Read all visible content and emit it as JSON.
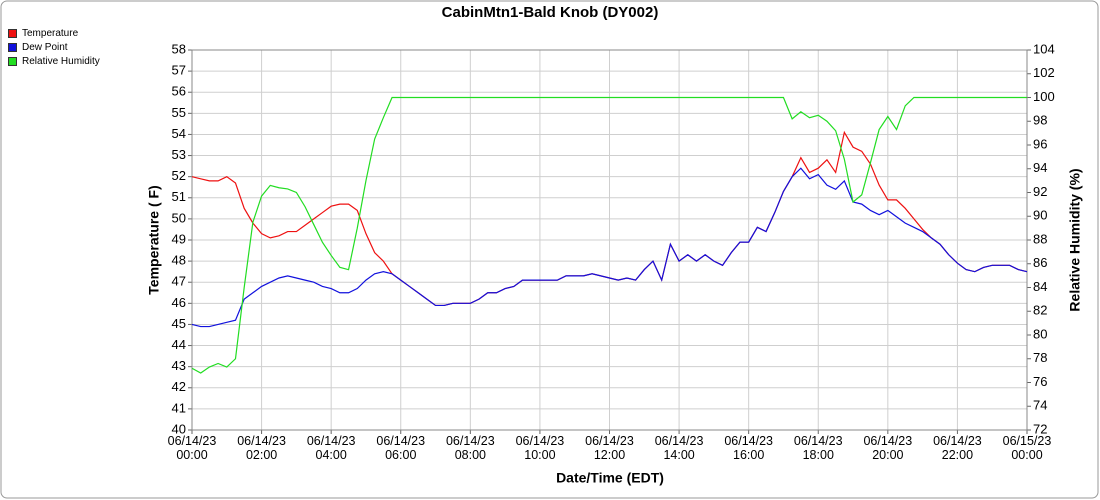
{
  "chart_data": {
    "type": "line",
    "title": "CabinMtn1-Bald Knob (DY002)",
    "xlabel": "Date/Time (EDT)",
    "ylabel": "Temperature ( F)",
    "y2label": "Relative Humidity (%)",
    "grid": true,
    "legend": "top-left",
    "xlim": [
      0,
      24
    ],
    "xticks": [
      {
        "value": 0,
        "label": "06/14/23 00:00"
      },
      {
        "value": 2,
        "label": "06/14/23 02:00"
      },
      {
        "value": 4,
        "label": "06/14/23 04:00"
      },
      {
        "value": 6,
        "label": "06/14/23 06:00"
      },
      {
        "value": 8,
        "label": "06/14/23 08:00"
      },
      {
        "value": 10,
        "label": "06/14/23 10:00"
      },
      {
        "value": 12,
        "label": "06/14/23 12:00"
      },
      {
        "value": 14,
        "label": "06/14/23 14:00"
      },
      {
        "value": 16,
        "label": "06/14/23 16:00"
      },
      {
        "value": 18,
        "label": "06/14/23 18:00"
      },
      {
        "value": 20,
        "label": "06/14/23 20:00"
      },
      {
        "value": 22,
        "label": "06/14/23 22:00"
      },
      {
        "value": 24,
        "label": "06/15/23 00:00"
      }
    ],
    "ylim": [
      40,
      58
    ],
    "yticks": [
      40,
      41,
      42,
      43,
      44,
      45,
      46,
      47,
      48,
      49,
      50,
      51,
      52,
      53,
      54,
      55,
      56,
      57,
      58
    ],
    "y2lim": [
      72,
      104
    ],
    "y2ticks": [
      72,
      74,
      76,
      78,
      80,
      82,
      84,
      86,
      88,
      90,
      92,
      94,
      96,
      98,
      100,
      102,
      104
    ],
    "x": [
      0,
      0.25,
      0.5,
      0.75,
      1,
      1.25,
      1.5,
      1.75,
      2,
      2.25,
      2.5,
      2.75,
      3,
      3.25,
      3.5,
      3.75,
      4,
      4.25,
      4.5,
      4.75,
      5,
      5.25,
      5.5,
      5.75,
      6,
      6.25,
      6.5,
      6.75,
      7,
      7.25,
      7.5,
      7.75,
      8,
      8.25,
      8.5,
      8.75,
      9,
      9.25,
      9.5,
      9.75,
      10,
      10.25,
      10.5,
      10.75,
      11,
      11.25,
      11.5,
      11.75,
      12,
      12.25,
      12.5,
      12.75,
      13,
      13.25,
      13.5,
      13.75,
      14,
      14.25,
      14.5,
      14.75,
      15,
      15.25,
      15.5,
      15.75,
      16,
      16.25,
      16.5,
      16.75,
      17,
      17.25,
      17.5,
      17.75,
      18,
      18.25,
      18.5,
      18.75,
      19,
      19.25,
      19.5,
      19.75,
      20,
      20.25,
      20.5,
      20.75,
      21,
      21.25,
      21.5,
      21.75,
      22,
      22.25,
      22.5,
      22.75,
      23,
      23.25,
      23.5,
      23.75,
      24
    ],
    "series": [
      {
        "name": "Temperature",
        "color": "#ee1111",
        "values": [
          52.0,
          51.9,
          51.8,
          51.8,
          52.0,
          51.7,
          50.5,
          49.8,
          49.3,
          49.1,
          49.2,
          49.4,
          49.4,
          49.7,
          50.0,
          50.3,
          50.6,
          50.7,
          50.7,
          50.4,
          49.3,
          48.4,
          48.0,
          47.4,
          47.1,
          46.8,
          46.5,
          46.2,
          45.9,
          45.9,
          46.0,
          46.0,
          46.0,
          46.2,
          46.5,
          46.5,
          46.7,
          46.8,
          47.1,
          47.1,
          47.1,
          47.1,
          47.1,
          47.3,
          47.3,
          47.3,
          47.4,
          47.3,
          47.2,
          47.1,
          47.2,
          47.1,
          47.6,
          48.0,
          47.1,
          48.8,
          48.0,
          48.3,
          48.0,
          48.3,
          48.0,
          47.8,
          48.4,
          48.9,
          48.9,
          49.6,
          49.4,
          50.3,
          51.3,
          52.0,
          52.9,
          52.2,
          52.4,
          52.8,
          52.2,
          54.1,
          53.4,
          53.2,
          52.6,
          51.6,
          50.9,
          50.9,
          50.5,
          50.0,
          49.5,
          49.1,
          48.8,
          48.3,
          47.9,
          47.6,
          47.5,
          47.7,
          47.8,
          47.8,
          47.8,
          47.6,
          47.5
        ]
      },
      {
        "name": "Dew Point",
        "color": "#1111dd",
        "values": [
          45.0,
          44.9,
          44.9,
          45.0,
          45.1,
          45.2,
          46.2,
          46.5,
          46.8,
          47.0,
          47.2,
          47.3,
          47.2,
          47.1,
          47.0,
          46.8,
          46.7,
          46.5,
          46.5,
          46.7,
          47.1,
          47.4,
          47.5,
          47.4,
          47.1,
          46.8,
          46.5,
          46.2,
          45.9,
          45.9,
          46.0,
          46.0,
          46.0,
          46.2,
          46.5,
          46.5,
          46.7,
          46.8,
          47.1,
          47.1,
          47.1,
          47.1,
          47.1,
          47.3,
          47.3,
          47.3,
          47.4,
          47.3,
          47.2,
          47.1,
          47.2,
          47.1,
          47.6,
          48.0,
          47.1,
          48.8,
          48.0,
          48.3,
          48.0,
          48.3,
          48.0,
          47.8,
          48.4,
          48.9,
          48.9,
          49.6,
          49.4,
          50.3,
          51.3,
          52.0,
          52.4,
          51.9,
          52.1,
          51.6,
          51.4,
          51.8,
          50.8,
          50.7,
          50.4,
          50.2,
          50.4,
          50.1,
          49.8,
          49.6,
          49.4,
          49.1,
          48.8,
          48.3,
          47.9,
          47.6,
          47.5,
          47.7,
          47.8,
          47.8,
          47.8,
          47.6,
          47.5
        ]
      },
      {
        "name": "Relative Humidity",
        "color": "#22dd22",
        "axis": "y2",
        "values": [
          77.2,
          76.8,
          77.3,
          77.6,
          77.3,
          78.0,
          84.0,
          89.5,
          91.7,
          92.6,
          92.4,
          92.3,
          92.0,
          90.8,
          89.3,
          87.8,
          86.7,
          85.7,
          85.5,
          89.0,
          93.0,
          96.5,
          98.3,
          100,
          100,
          100,
          100,
          100,
          100,
          100,
          100,
          100,
          100,
          100,
          100,
          100,
          100,
          100,
          100,
          100,
          100,
          100,
          100,
          100,
          100,
          100,
          100,
          100,
          100,
          100,
          100,
          100,
          100,
          100,
          100,
          100,
          100,
          100,
          100,
          100,
          100,
          100,
          100,
          100,
          100,
          100,
          100,
          100,
          100,
          98.2,
          98.8,
          98.3,
          98.5,
          98.0,
          97.2,
          94.8,
          91.2,
          91.8,
          94.5,
          97.3,
          98.4,
          97.3,
          99.3,
          100,
          100,
          100,
          100,
          100,
          100,
          100,
          100,
          100,
          100,
          100,
          100,
          100,
          100
        ]
      }
    ]
  }
}
